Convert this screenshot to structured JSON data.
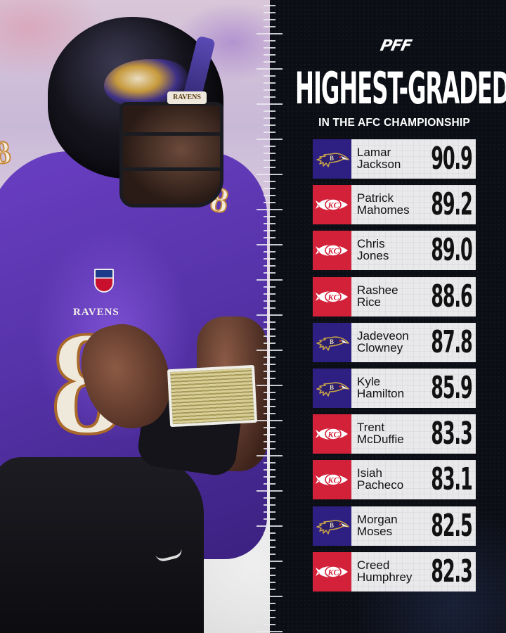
{
  "brand": {
    "logo_text": "PFF"
  },
  "header": {
    "title": "HIGHEST-GRADED",
    "subtitle": "IN THE AFC CHAMPIONSHIP"
  },
  "photo": {
    "helmet_tag": "RAVENS",
    "jersey_word": "RAVENS",
    "jersey_number": "8"
  },
  "colors": {
    "background": "#0c0e16",
    "ravens_purple": "#2e1f82",
    "chiefs_red": "#d4213a",
    "row_bg": "#e9e9ec",
    "text_dark": "#111111"
  },
  "players": [
    {
      "first": "Lamar",
      "last": "Jackson",
      "grade": "90.9",
      "team": "BAL",
      "team_icon": "ravens-logo-icon"
    },
    {
      "first": "Patrick",
      "last": "Mahomes",
      "grade": "89.2",
      "team": "KC",
      "team_icon": "chiefs-logo-icon"
    },
    {
      "first": "Chris",
      "last": "Jones",
      "grade": "89.0",
      "team": "KC",
      "team_icon": "chiefs-logo-icon"
    },
    {
      "first": "Rashee",
      "last": "Rice",
      "grade": "88.6",
      "team": "KC",
      "team_icon": "chiefs-logo-icon"
    },
    {
      "first": "Jadeveon",
      "last": "Clowney",
      "grade": "87.8",
      "team": "BAL",
      "team_icon": "ravens-logo-icon"
    },
    {
      "first": "Kyle",
      "last": "Hamilton",
      "grade": "85.9",
      "team": "BAL",
      "team_icon": "ravens-logo-icon"
    },
    {
      "first": "Trent",
      "last": "McDuffie",
      "grade": "83.3",
      "team": "KC",
      "team_icon": "chiefs-logo-icon"
    },
    {
      "first": "Isiah",
      "last": "Pacheco",
      "grade": "83.1",
      "team": "KC",
      "team_icon": "chiefs-logo-icon"
    },
    {
      "first": "Morgan",
      "last": "Moses",
      "grade": "82.5",
      "team": "BAL",
      "team_icon": "ravens-logo-icon"
    },
    {
      "first": "Creed",
      "last": "Humphrey",
      "grade": "82.3",
      "team": "KC",
      "team_icon": "chiefs-logo-icon"
    }
  ]
}
